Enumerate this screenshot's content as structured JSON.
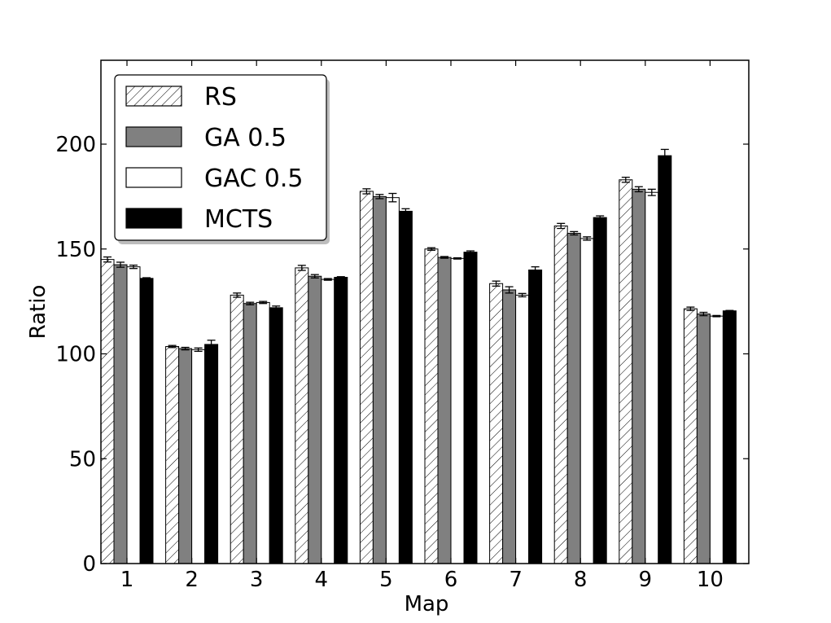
{
  "chart_data": {
    "type": "bar",
    "xlabel": "Map",
    "ylabel": "Ratio",
    "ylim": [
      0,
      240
    ],
    "yticks": [
      0,
      50,
      100,
      150,
      200
    ],
    "categories": [
      "1",
      "2",
      "3",
      "4",
      "5",
      "6",
      "7",
      "8",
      "9",
      "10"
    ],
    "legend_position": "top-left",
    "series": [
      {
        "name": "RS",
        "style": "hatched",
        "color": "#ffffff",
        "values": [
          145,
          103.5,
          128,
          141,
          177.5,
          150,
          133.5,
          161,
          183,
          121.5
        ],
        "errors": [
          1.2,
          0.5,
          1.0,
          1.2,
          1.2,
          0.6,
          1.2,
          1.2,
          1.2,
          0.8
        ]
      },
      {
        "name": "GA 0.5",
        "style": "solid",
        "color": "#808080",
        "values": [
          142.5,
          102.5,
          124,
          137,
          175,
          146,
          130.5,
          157.5,
          178.5,
          119
        ],
        "errors": [
          1.2,
          0.6,
          0.6,
          0.8,
          1.0,
          0.4,
          1.5,
          0.8,
          1.2,
          0.8
        ]
      },
      {
        "name": "GAC 0.5",
        "style": "solid",
        "color": "#ffffff",
        "values": [
          141.5,
          102,
          124.5,
          135.5,
          174.5,
          145.5,
          128,
          155,
          177,
          118
        ],
        "errors": [
          0.8,
          0.8,
          0.5,
          0.4,
          2.0,
          0.3,
          0.8,
          0.8,
          1.5,
          0.3
        ]
      },
      {
        "name": "MCTS",
        "style": "solid",
        "color": "#000000",
        "values": [
          136,
          104.5,
          122,
          136.5,
          168,
          148.5,
          140,
          165,
          194.5,
          120.5
        ],
        "errors": [
          0.3,
          2.0,
          0.8,
          0.3,
          1.2,
          0.6,
          1.5,
          0.8,
          3.0,
          0.2
        ]
      }
    ]
  }
}
